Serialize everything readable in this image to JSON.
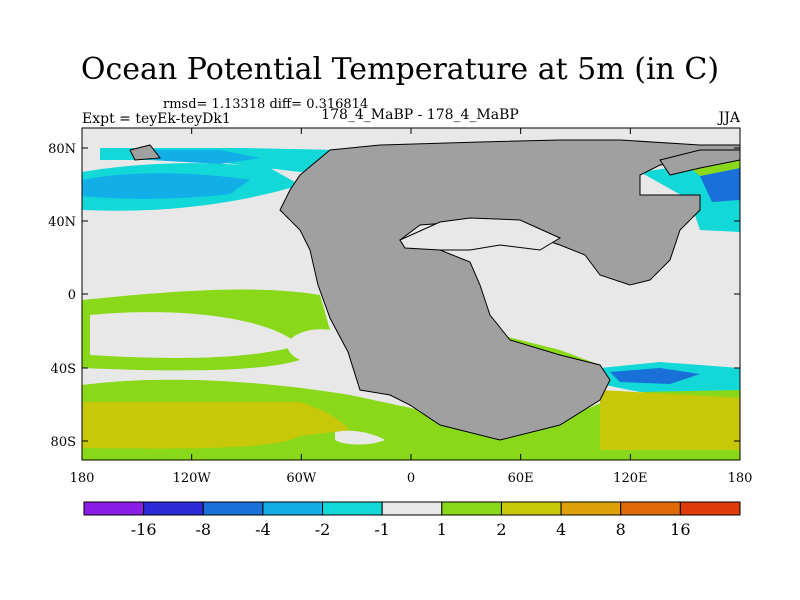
{
  "title": "Ocean Potential Temperature at 5m (in C)",
  "stats_line": "rmsd= 1.13318 diff= 0.316814",
  "expt_label": "Expt = teyEk-teyDk1",
  "center_label": "178_4_MaBP - 178_4_MaBP",
  "season_label": "JJA",
  "y_ticks": [
    "80N",
    "40N",
    "0",
    "40S",
    "80S"
  ],
  "x_ticks": [
    "180",
    "120W",
    "60W",
    "0",
    "60E",
    "120E",
    "180"
  ],
  "colorbar": {
    "labels": [
      "-16",
      "-8",
      "-4",
      "-2",
      "-1",
      "1",
      "2",
      "4",
      "8",
      "16"
    ],
    "colors": [
      "#8a1ee6",
      "#2a2ad8",
      "#1870d8",
      "#11aee8",
      "#12d8d8",
      "#e8e8e8",
      "#8ad81a",
      "#c8c80a",
      "#e0a008",
      "#e06a08",
      "#e03a08"
    ]
  },
  "map_colors": {
    "land": "#a0a0a0",
    "neutral": "#e8e8e8",
    "green": "#8ad81a",
    "olive": "#c8c80a",
    "orange": "#e0a008",
    "cyan": "#12d8d8",
    "sky": "#11aee8",
    "blue": "#1870d8"
  }
}
